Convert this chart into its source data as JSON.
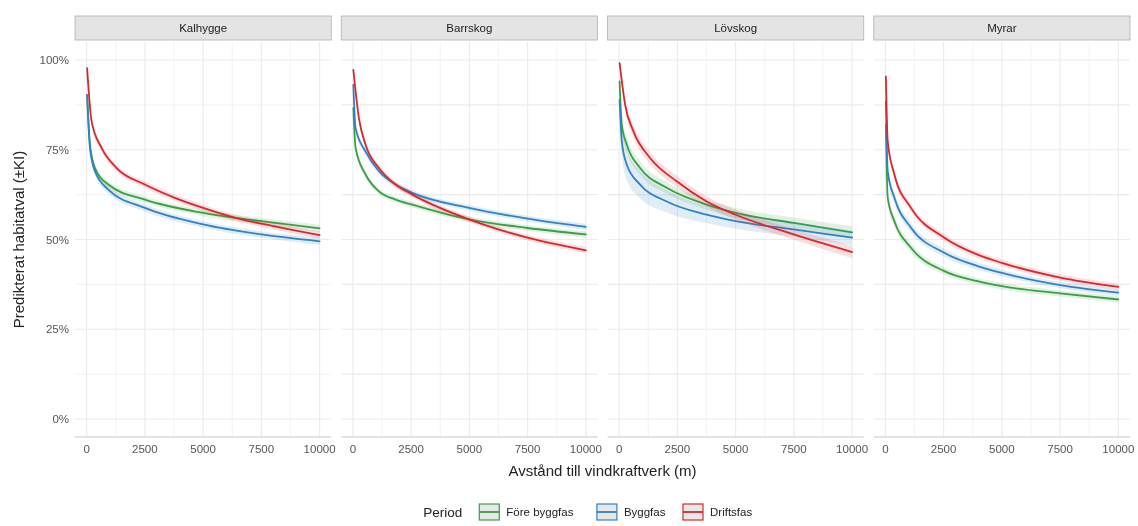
{
  "chart_data": [
    {
      "type": "line",
      "title": "Kalhygge",
      "ylabel": "Predikterat habitatval (±KI)",
      "legend": "bottom",
      "legend_title": "Period",
      "grid": true,
      "xlim": [
        -500,
        10500
      ],
      "ylim": [
        -5,
        105
      ],
      "xticks": [
        0,
        2500,
        5000,
        7500,
        10000,
        {
          "value": 1250,
          "label": null
        },
        {
          "value": 3750,
          "label": null
        },
        {
          "value": 6250,
          "label": null
        },
        {
          "value": 8750,
          "label": null
        }
      ],
      "yticks": [
        {
          "value": 0,
          "label": "0%"
        },
        {
          "value": 25,
          "label": "25%"
        },
        {
          "value": 50,
          "label": "50%"
        },
        {
          "value": 75,
          "label": "75%"
        },
        {
          "value": 100,
          "label": "100%"
        },
        {
          "value": 12.5,
          "label": null
        },
        {
          "value": 37.5,
          "label": null
        },
        {
          "value": 62.5,
          "label": null
        },
        {
          "value": 87.5,
          "label": null
        }
      ],
      "series": [
        {
          "name": "Före byggfas",
          "color": "#3a9e45",
          "x": [
            20,
            143,
            357,
            929,
            2500,
            5000,
            7500,
            10000
          ],
          "values": [
            90.3,
            76.4,
            69.9,
            65.3,
            61.1,
            57.4,
            55.1,
            53.1
          ],
          "lower": [
            88.5,
            75,
            68.8,
            64.3,
            60.2,
            56.5,
            54.2,
            52.1
          ],
          "upper": [
            92,
            77.8,
            71,
            66.3,
            62,
            58.3,
            56,
            54.1
          ]
        },
        {
          "name": "Byggfas",
          "color": "#2f83c4",
          "x": [
            20,
            143,
            357,
            929,
            2500,
            5000,
            7500,
            10000
          ],
          "values": [
            90.3,
            75.5,
            69,
            63.9,
            58.8,
            54.2,
            51.4,
            49.5
          ],
          "lower": [
            88.5,
            74,
            67.8,
            62.8,
            57.8,
            53.3,
            50.5,
            48.5
          ],
          "upper": [
            92,
            77,
            70.2,
            65,
            59.8,
            55.1,
            52.3,
            50.5
          ]
        },
        {
          "name": "Driftsfas",
          "color": "#d7282f",
          "x": [
            20,
            214,
            643,
            1286,
            2500,
            3786,
            5000,
            6643,
            7500,
            10000
          ],
          "values": [
            97.7,
            82.9,
            75.5,
            69.9,
            65.3,
            61.6,
            58.8,
            55.6,
            54.4,
            51.2
          ],
          "lower": [
            96.5,
            81.8,
            74.5,
            69,
            64.4,
            60.7,
            57.9,
            54.7,
            53.5,
            50.2
          ],
          "upper": [
            98.8,
            84,
            76.5,
            70.8,
            66.2,
            62.5,
            59.7,
            56.5,
            55.3,
            52.2
          ]
        }
      ]
    },
    {
      "type": "line",
      "title": "Barrskog",
      "xlabel": "Avstånd till vindkraftverk (m)",
      "tick_labels": "x",
      "grid": true,
      "xlim": [
        -500,
        10500
      ],
      "ylim": [
        -5,
        105
      ],
      "xticks": [
        0,
        2500,
        5000,
        7500,
        10000,
        {
          "value": 1250,
          "label": null
        },
        {
          "value": 3750,
          "label": null
        },
        {
          "value": 6250,
          "label": null
        },
        {
          "value": 8750,
          "label": null
        }
      ],
      "yticks": [
        0,
        25,
        50,
        75,
        100,
        12.5,
        37.5,
        62.5,
        87.5
      ],
      "series": [
        {
          "color": "#3a9e45",
          "x": [
            20,
            115,
            544,
            1118,
            1834,
            2550,
            4987,
            7496,
            10000
          ],
          "values": [
            86.6,
            75.5,
            68.1,
            63.4,
            61.1,
            59.7,
            55.6,
            53.2,
            51.4
          ],
          "lower": [
            85,
            74.3,
            67.2,
            62.6,
            60.3,
            58.9,
            54.8,
            52.4,
            50.5
          ],
          "upper": [
            88,
            76.7,
            69,
            64.2,
            61.9,
            60.5,
            56.4,
            54,
            52.3
          ]
        },
        {
          "color": "#2f83c4",
          "x": [
            20,
            115,
            544,
            1118,
            1834,
            2550,
            4987,
            7496,
            10000
          ],
          "values": [
            93.1,
            81,
            74.5,
            69,
            65.3,
            63,
            58.8,
            55.8,
            53.5
          ],
          "lower": [
            92,
            80,
            73.6,
            68.2,
            64.5,
            62.2,
            58,
            55,
            52.6
          ],
          "upper": [
            94.2,
            82,
            75.4,
            69.8,
            66.1,
            63.8,
            59.6,
            56.6,
            54.4
          ]
        },
        {
          "color": "#d7282f",
          "x": [
            20,
            258,
            544,
            1118,
            1834,
            2550,
            4987,
            7496,
            10000
          ],
          "values": [
            97.2,
            83.8,
            76.4,
            69.9,
            65.3,
            62.5,
            55.6,
            50.5,
            47
          ],
          "lower": [
            96.3,
            83,
            75.6,
            69.1,
            64.5,
            61.7,
            54.8,
            49.7,
            46.1
          ],
          "upper": [
            98.1,
            84.6,
            77.2,
            70.7,
            66.1,
            63.3,
            56.4,
            51.3,
            47.9
          ]
        }
      ]
    },
    {
      "type": "line",
      "title": "Lövskog",
      "tick_labels": "x",
      "grid": true,
      "xlim": [
        -500,
        10500
      ],
      "ylim": [
        -5,
        105
      ],
      "xticks": [
        0,
        2500,
        5000,
        7500,
        10000,
        {
          "value": 1250,
          "label": null
        },
        {
          "value": 3750,
          "label": null
        },
        {
          "value": 6250,
          "label": null
        },
        {
          "value": 8750,
          "label": null
        }
      ],
      "yticks": [
        0,
        25,
        50,
        75,
        100,
        12.5,
        37.5,
        62.5,
        87.5
      ],
      "series": [
        {
          "color": "#3a9e45",
          "x": [
            20,
            114,
            329,
            900,
            2043,
            3757,
            5000,
            7500,
            10000
          ],
          "values": [
            94,
            81.9,
            76.4,
            69.9,
            64.4,
            59.7,
            57.4,
            54.6,
            52
          ],
          "lower": [
            92,
            79.5,
            74.2,
            68,
            62.8,
            58.3,
            56,
            53.1,
            50.3
          ],
          "upper": [
            96,
            84.3,
            78.6,
            71.8,
            66,
            61.1,
            58.8,
            56.1,
            53.7
          ]
        },
        {
          "color": "#2f83c4",
          "x": [
            20,
            114,
            329,
            900,
            2043,
            3757,
            5000,
            7500,
            10000
          ],
          "values": [
            88.9,
            77.3,
            70.8,
            65.3,
            60.6,
            56.9,
            55.1,
            52.8,
            50.5
          ],
          "lower": [
            85,
            73,
            66.5,
            61.5,
            57.5,
            54.5,
            53,
            50.8,
            48.5
          ],
          "upper": [
            92.8,
            81.6,
            75.1,
            69.1,
            63.7,
            59.3,
            57.2,
            54.8,
            52.5
          ]
        },
        {
          "color": "#d7282f",
          "x": [
            20,
            257,
            614,
            1329,
            2471,
            3757,
            5000,
            7500,
            10000
          ],
          "values": [
            99.1,
            87.5,
            80.1,
            72.7,
            66.2,
            60.6,
            56.9,
            51.4,
            46.5
          ],
          "lower": [
            98.3,
            85.8,
            78.4,
            71,
            64.6,
            59.2,
            55.5,
            49.9,
            44.8
          ],
          "upper": [
            99.9,
            89.2,
            81.8,
            74.4,
            67.8,
            62,
            58.3,
            52.9,
            48.2
          ]
        }
      ]
    },
    {
      "type": "line",
      "title": "Myrar",
      "tick_labels": "x",
      "grid": true,
      "xlim": [
        -500,
        10500
      ],
      "ylim": [
        -5,
        105
      ],
      "xticks": [
        0,
        2500,
        5000,
        7500,
        10000,
        {
          "value": 1250,
          "label": null
        },
        {
          "value": 3750,
          "label": null
        },
        {
          "value": 6250,
          "label": null
        },
        {
          "value": 8750,
          "label": null
        }
      ],
      "yticks": [
        0,
        25,
        50,
        75,
        100,
        12.5,
        37.5,
        62.5,
        87.5
      ],
      "series": [
        {
          "color": "#3a9e45",
          "x": [
            20,
            100,
            386,
            1100,
            2529,
            3957,
            5000,
            7500,
            10000
          ],
          "values": [
            81.9,
            61.6,
            55.1,
            47.7,
            41.2,
            38.4,
            37,
            35,
            33.3
          ],
          "lower": [
            79.8,
            59.8,
            53.5,
            46.4,
            40.2,
            37.5,
            36.1,
            34.1,
            32.4
          ],
          "upper": [
            84,
            63.4,
            56.7,
            49,
            42.2,
            39.3,
            37.9,
            35.9,
            34.2
          ]
        },
        {
          "color": "#2f83c4",
          "x": [
            20,
            100,
            386,
            1100,
            2529,
            3957,
            5000,
            7500,
            10000
          ],
          "values": [
            88.4,
            69,
            61.6,
            53.3,
            46.3,
            42.6,
            40.7,
            37.3,
            35.2
          ],
          "lower": [
            86.5,
            67.2,
            60,
            52,
            45.2,
            41.6,
            39.8,
            36.4,
            34.3
          ],
          "upper": [
            90.3,
            70.8,
            63.2,
            54.6,
            47.4,
            43.6,
            41.6,
            38.2,
            36.1
          ]
        },
        {
          "color": "#d7282f",
          "x": [
            20,
            100,
            386,
            1100,
            2529,
            3957,
            5000,
            7500,
            10000
          ],
          "values": [
            95.4,
            77.3,
            68.1,
            58.8,
            50.5,
            45.8,
            43.5,
            39.4,
            36.8
          ],
          "lower": [
            94,
            75.8,
            66.8,
            57.7,
            49.5,
            44.9,
            42.6,
            38.5,
            35.9
          ],
          "upper": [
            96.8,
            78.8,
            69.4,
            59.9,
            51.5,
            46.7,
            44.4,
            40.3,
            37.7
          ]
        }
      ]
    }
  ]
}
